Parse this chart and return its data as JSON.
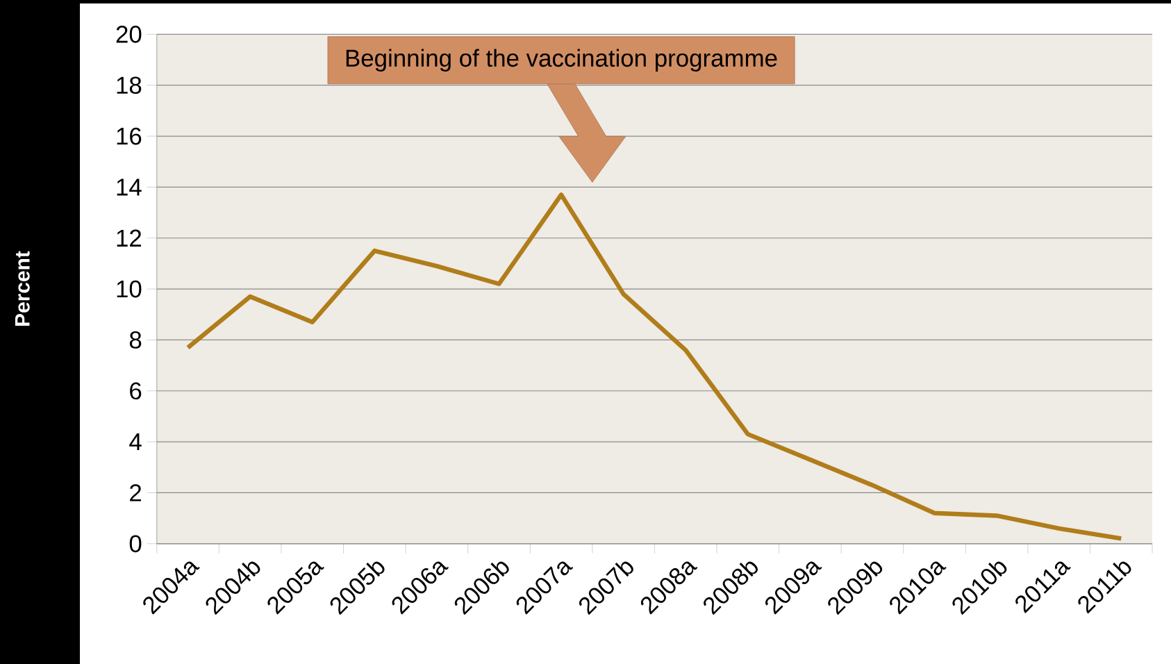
{
  "chart_data": {
    "type": "line",
    "ylabel": "Percent",
    "categories": [
      "2004a",
      "2004b",
      "2005a",
      "2005b",
      "2006a",
      "2006b",
      "2007a",
      "2007b",
      "2008a",
      "2008b",
      "2009a",
      "2009b",
      "2010a",
      "2010b",
      "2011a",
      "2011b"
    ],
    "values": [
      7.7,
      9.7,
      8.7,
      11.5,
      10.9,
      10.2,
      13.7,
      9.8,
      7.6,
      4.3,
      3.3,
      2.3,
      1.2,
      1.1,
      0.6,
      0.2
    ],
    "color": "#b07d1a",
    "ylim": [
      0,
      20
    ],
    "yticks": [
      0,
      2,
      4,
      6,
      8,
      10,
      12,
      14,
      16,
      18,
      20
    ],
    "grid": "y",
    "annotations": [
      "Beginning of the vaccination programme"
    ]
  }
}
